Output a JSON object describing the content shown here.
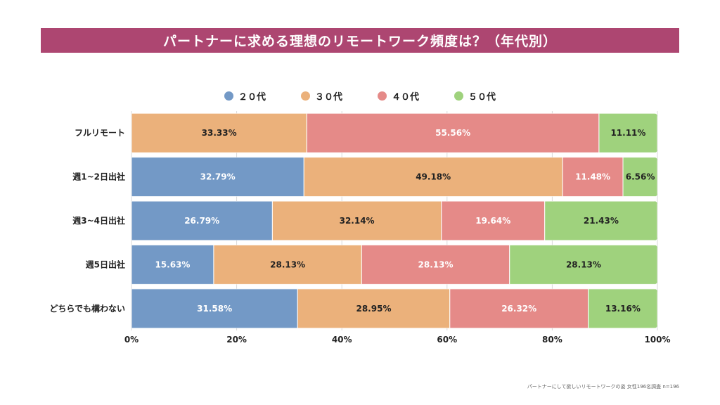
{
  "title": "パートナーに求める理想のリモートワーク頻度は？（年代別）",
  "source_note": "パートナーにして欲しいリモートワークの姿 女性196名調査 n=196",
  "colors": {
    "title_bg": "#ad4671",
    "s20": "#7399c6",
    "s30": "#ebb17b",
    "s40": "#e58a88",
    "s50": "#9fd27d"
  },
  "chart_data": {
    "type": "bar",
    "orientation": "horizontal",
    "stacked": true,
    "categories": [
      "フルリモート",
      "週1~2日出社",
      "週3~4日出社",
      "週5日出社",
      "どちらでも構わない"
    ],
    "series": [
      {
        "name": "２０代",
        "values": [
          0,
          32.79,
          26.79,
          15.63,
          31.58
        ],
        "color": "#7399c6"
      },
      {
        "name": "３０代",
        "values": [
          33.33,
          49.18,
          32.14,
          28.13,
          28.95
        ],
        "color": "#ebb17b"
      },
      {
        "name": "４０代",
        "values": [
          55.56,
          11.48,
          19.64,
          28.13,
          26.32
        ],
        "color": "#e58a88"
      },
      {
        "name": "５０代",
        "values": [
          11.11,
          6.56,
          21.43,
          28.13,
          13.16
        ],
        "color": "#9fd27d"
      }
    ],
    "xlim": [
      0,
      100
    ],
    "xticks": [
      "0%",
      "20%",
      "40%",
      "60%",
      "80%",
      "100%"
    ],
    "grid": true,
    "legend_position": "top"
  }
}
